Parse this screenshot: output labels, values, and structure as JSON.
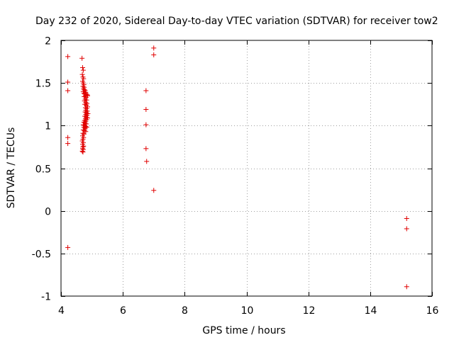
{
  "chart_data": {
    "type": "scatter",
    "title": "Day 232 of 2020, Sidereal Day-to-day VTEC variation (SDTVAR) for receiver tow2",
    "xlabel": "GPS time / hours",
    "ylabel": "SDTVAR / TECUs",
    "xlim": [
      4,
      16
    ],
    "ylim": [
      -1,
      2
    ],
    "xticks": [
      4,
      6,
      8,
      10,
      12,
      14,
      16
    ],
    "xtick_labels": [
      "4",
      "6",
      "8",
      "10",
      "12",
      "14",
      "16"
    ],
    "yticks": [
      -1,
      -0.5,
      0,
      0.5,
      1,
      1.5,
      2
    ],
    "ytick_labels": [
      "-1",
      "-0.5",
      "0",
      "0.5",
      "1",
      "1.5",
      "2"
    ],
    "grid": true,
    "marker": "+",
    "color": "#e00000",
    "series": [
      {
        "name": "SDTVAR",
        "points": [
          [
            4.22,
            1.81
          ],
          [
            4.22,
            1.51
          ],
          [
            4.22,
            1.41
          ],
          [
            4.22,
            0.86
          ],
          [
            4.22,
            0.79
          ],
          [
            4.22,
            -0.43
          ],
          [
            4.68,
            1.79
          ],
          [
            4.7,
            1.68
          ],
          [
            4.72,
            1.65
          ],
          [
            4.69,
            1.6
          ],
          [
            4.71,
            1.57
          ],
          [
            4.73,
            1.55
          ],
          [
            4.7,
            1.52
          ],
          [
            4.72,
            1.5
          ],
          [
            4.74,
            1.48
          ],
          [
            4.71,
            1.46
          ],
          [
            4.75,
            1.45
          ],
          [
            4.73,
            1.43
          ],
          [
            4.76,
            1.42
          ],
          [
            4.78,
            1.41
          ],
          [
            4.72,
            1.4
          ],
          [
            4.8,
            1.39
          ],
          [
            4.74,
            1.38
          ],
          [
            4.77,
            1.37
          ],
          [
            4.82,
            1.37
          ],
          [
            4.85,
            1.36
          ],
          [
            4.79,
            1.35
          ],
          [
            4.75,
            1.34
          ],
          [
            4.81,
            1.33
          ],
          [
            4.86,
            1.35
          ],
          [
            4.78,
            1.31
          ],
          [
            4.83,
            1.3
          ],
          [
            4.76,
            1.29
          ],
          [
            4.8,
            1.27
          ],
          [
            4.84,
            1.26
          ],
          [
            4.77,
            1.25
          ],
          [
            4.82,
            1.24
          ],
          [
            4.86,
            1.22
          ],
          [
            4.79,
            1.21
          ],
          [
            4.83,
            1.2
          ],
          [
            4.8,
            1.18
          ],
          [
            4.85,
            1.17
          ],
          [
            4.78,
            1.16
          ],
          [
            4.82,
            1.15
          ],
          [
            4.87,
            1.14
          ],
          [
            4.8,
            1.13
          ],
          [
            4.84,
            1.12
          ],
          [
            4.77,
            1.11
          ],
          [
            4.81,
            1.1
          ],
          [
            4.86,
            1.09
          ],
          [
            4.79,
            1.08
          ],
          [
            4.83,
            1.07
          ],
          [
            4.76,
            1.06
          ],
          [
            4.8,
            1.05
          ],
          [
            4.74,
            1.04
          ],
          [
            4.78,
            1.03
          ],
          [
            4.82,
            1.02
          ],
          [
            4.72,
            1.01
          ],
          [
            4.76,
            1.0
          ],
          [
            4.8,
            0.99
          ],
          [
            4.74,
            0.98
          ],
          [
            4.78,
            0.97
          ],
          [
            4.83,
            0.98
          ],
          [
            4.72,
            0.95
          ],
          [
            4.76,
            0.94
          ],
          [
            4.8,
            0.93
          ],
          [
            4.71,
            0.91
          ],
          [
            4.74,
            0.9
          ],
          [
            4.7,
            0.88
          ],
          [
            4.73,
            0.86
          ],
          [
            4.71,
            0.84
          ],
          [
            4.69,
            0.82
          ],
          [
            4.72,
            0.8
          ],
          [
            4.7,
            0.78
          ],
          [
            4.73,
            0.76
          ],
          [
            4.71,
            0.75
          ],
          [
            4.7,
            0.73
          ],
          [
            4.72,
            0.72
          ],
          [
            4.69,
            0.7
          ],
          [
            4.71,
            0.69
          ],
          [
            6.75,
            1.41
          ],
          [
            6.75,
            1.19
          ],
          [
            6.75,
            1.01
          ],
          [
            6.75,
            0.73
          ],
          [
            6.77,
            0.58
          ],
          [
            7.0,
            1.91
          ],
          [
            7.0,
            1.83
          ],
          [
            7.0,
            0.24
          ],
          [
            15.18,
            -0.09
          ],
          [
            15.18,
            -0.21
          ],
          [
            15.18,
            -0.89
          ]
        ]
      }
    ]
  }
}
